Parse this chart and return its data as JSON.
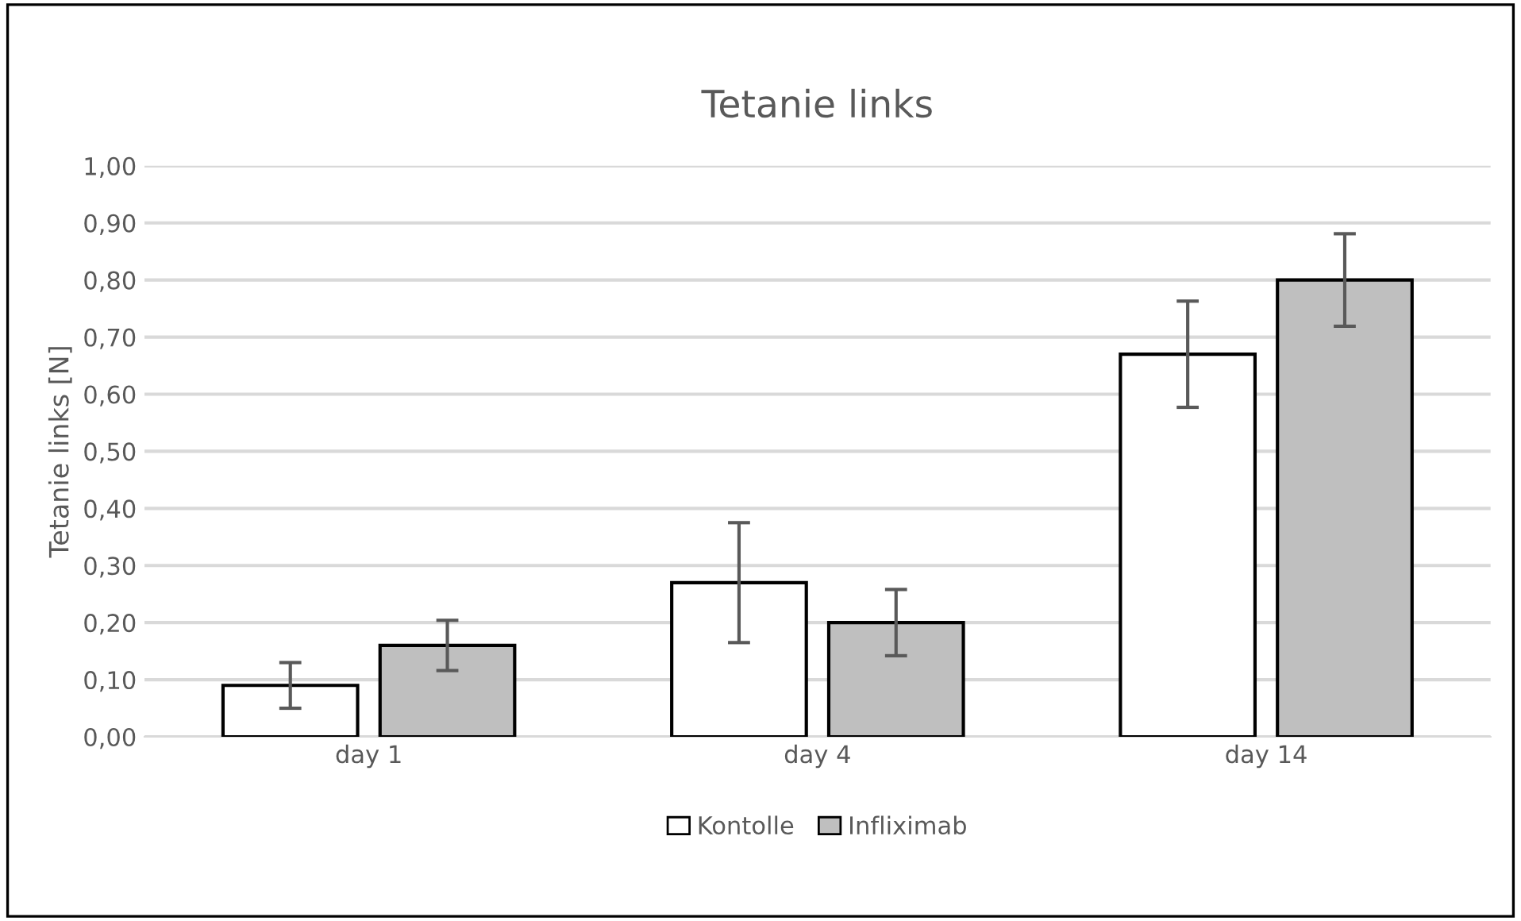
{
  "chart_data": {
    "type": "bar",
    "title": "Tetanie links",
    "ylabel": "Tetanie links [N]",
    "categories": [
      "day 1",
      "day 4",
      "day 14"
    ],
    "series": [
      {
        "name": "Kontolle",
        "color": "#ffffff",
        "values": [
          0.09,
          0.27,
          0.67
        ],
        "errors": [
          0.04,
          0.105,
          0.093
        ]
      },
      {
        "name": "Infliximab",
        "color": "#bfbfbf",
        "values": [
          0.16,
          0.2,
          0.8
        ],
        "errors": [
          0.044,
          0.058,
          0.081
        ]
      }
    ],
    "ylim": [
      0,
      1.0
    ],
    "yticks": [
      {
        "value": 0,
        "label": "0,00"
      },
      {
        "value": 0.1,
        "label": "0,10"
      },
      {
        "value": 0.2,
        "label": "0,20"
      },
      {
        "value": 0.3,
        "label": "0,30"
      },
      {
        "value": 0.4,
        "label": "0,40"
      },
      {
        "value": 0.5,
        "label": "0,50"
      },
      {
        "value": 0.6,
        "label": "0,60"
      },
      {
        "value": 0.7,
        "label": "0,70"
      },
      {
        "value": 0.8,
        "label": "0,80"
      },
      {
        "value": 0.9,
        "label": "0,90"
      },
      {
        "value": 1.0,
        "label": "1,00"
      }
    ],
    "grid": "y",
    "legend": "bottom"
  }
}
